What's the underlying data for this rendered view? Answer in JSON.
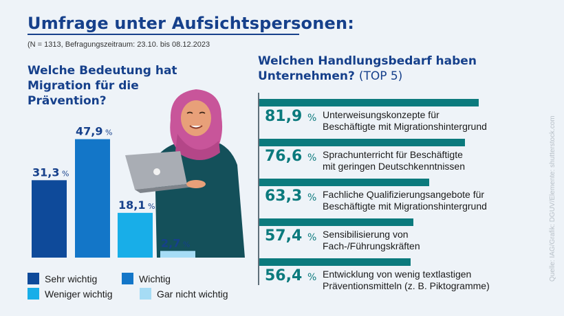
{
  "header": {
    "title": "Umfrage unter Aufsichtspersonen:",
    "meta": "(N = 1313, Befragungszeitraum: 23.10. bis 08.12.2023"
  },
  "left_question": "Welche Bedeutung hat Migration für die Prävention?",
  "right_question": {
    "main": "Welchen Handlungsbedarf haben Unternehmen?",
    "sub": "(TOP 5)"
  },
  "source": "Quelle: IAG/Grafik: DGUV/Elemente: shutterstock.com",
  "colors": {
    "sehr_wichtig": "#0e4a9a",
    "wichtig": "#1376c8",
    "weniger_wichtig": "#18aee8",
    "gar_nicht_wichtig": "#a6dcf5",
    "teal": "#0b7a7d",
    "title_blue": "#16408b"
  },
  "chart_data": [
    {
      "type": "bar",
      "title": "Welche Bedeutung hat Migration für die Prävention?",
      "categories": [
        "Sehr wichtig",
        "Wichtig",
        "Weniger wichtig",
        "Gar nicht wichtig"
      ],
      "values": [
        31.3,
        47.9,
        18.1,
        2.7
      ],
      "value_labels": [
        "31,3",
        "47,9",
        "18,1",
        "2,7"
      ],
      "unit": "%",
      "legend": "bottom",
      "grid": false
    },
    {
      "type": "bar",
      "orientation": "horizontal",
      "title": "Welchen Handlungsbedarf haben Unternehmen? (TOP 5)",
      "categories": [
        "Unterweisungskonzepte für Beschäftigte mit Migrationshintergrund",
        "Sprachunterricht für Beschäftigte mit geringen Deutschkenntnissen",
        "Fachliche Qualifizierungsangebote für Beschäftigte mit Migrationshintergrund",
        "Sensibilisierung von Fach-/Führungskräften",
        "Entwicklung von wenig textlastigen Präventionsmitteln (z. B. Piktogramme)"
      ],
      "values": [
        81.9,
        76.6,
        63.3,
        57.4,
        56.4
      ],
      "value_labels": [
        "81,9",
        "76,6",
        "63,3",
        "57,4",
        "56,4"
      ],
      "label_lines": [
        [
          "Unterweisungskonzepte für",
          "Beschäftigte mit Migrationshintergrund"
        ],
        [
          "Sprachunterricht für Beschäftigte",
          "mit geringen Deutschkenntnissen"
        ],
        [
          "Fachliche Qualifizierungsangebote für",
          "Beschäftigte mit Migrationshintergrund"
        ],
        [
          "Sensibilisierung von",
          "Fach-/Führungskräften"
        ],
        [
          "Entwicklung von wenig textlastigen",
          "Präventionsmitteln (z. B. Piktogramme)"
        ]
      ],
      "unit": "%",
      "grid": false
    }
  ]
}
